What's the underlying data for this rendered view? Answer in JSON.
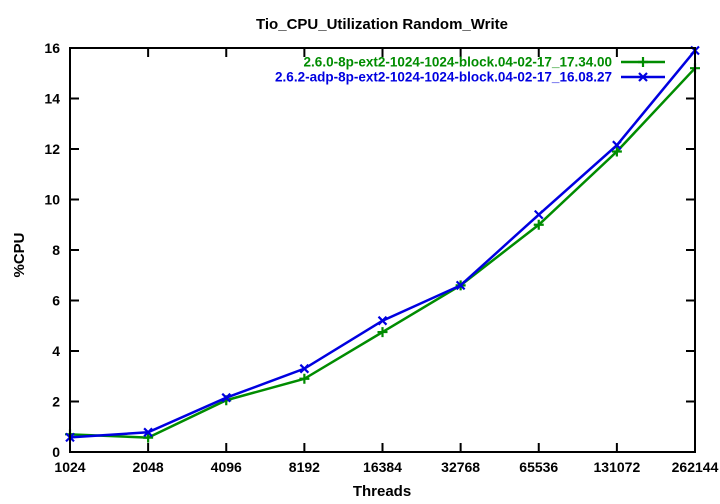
{
  "chart_data": {
    "type": "line",
    "title": "Tio_CPU_Utilization Random_Write",
    "xlabel": "Threads",
    "ylabel": "%CPU",
    "categories": [
      "1024",
      "2048",
      "4096",
      "8192",
      "16384",
      "32768",
      "65536",
      "131072",
      "262144"
    ],
    "ylim": [
      0,
      16
    ],
    "ytick_step": 2,
    "ytick_labels": [
      "0",
      "2",
      "4",
      "6",
      "8",
      "10",
      "12",
      "14",
      "16"
    ],
    "grid": false,
    "legend_position": "top-right-inside",
    "background_color": "#ffffff",
    "axis_color": "#000000",
    "series": [
      {
        "name": "2.6.0-8p-ext2-1024-1024-block.04-02-17_17.34.00",
        "color": "#008c00",
        "marker": "plus",
        "values": [
          0.7,
          0.57,
          2.05,
          2.9,
          4.75,
          6.6,
          9.0,
          11.9,
          15.2
        ]
      },
      {
        "name": "2.6.2-adp-8p-ext2-1024-1024-block.04-02-17_16.08.27",
        "color": "#0000e0",
        "marker": "x",
        "values": [
          0.58,
          0.78,
          2.15,
          3.3,
          5.2,
          6.6,
          9.4,
          12.15,
          15.9
        ]
      }
    ]
  }
}
